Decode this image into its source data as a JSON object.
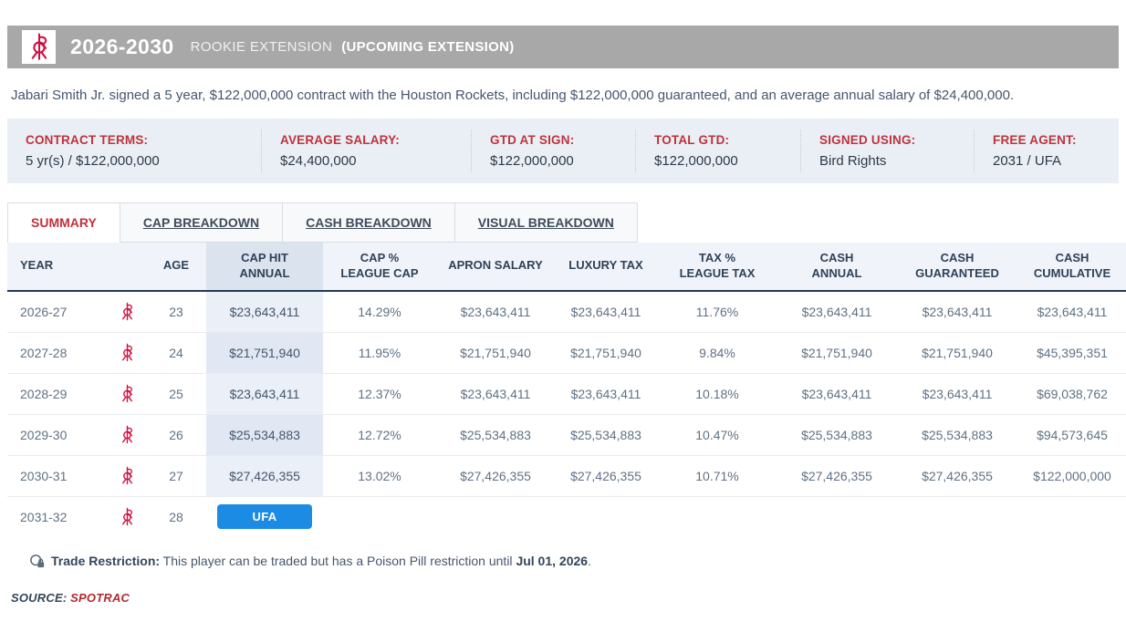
{
  "title_bar": {
    "years": "2026-2030",
    "contract_type": "ROOKIE EXTENSION",
    "status": "(UPCOMING EXTENSION)",
    "team_logo": "houston-rockets-logo",
    "bar_color": "#a8a8a8",
    "logo_color": "#ce1141"
  },
  "summary_sentence": "Jabari Smith Jr. signed a 5 year, $122,000,000 contract with the Houston Rockets, including $122,000,000 guaranteed, and an average annual salary of $24,400,000.",
  "contract_terms": [
    {
      "label": "CONTRACT TERMS:",
      "value": "5 yr(s) / $122,000,000"
    },
    {
      "label": "AVERAGE SALARY:",
      "value": "$24,400,000"
    },
    {
      "label": "GTD AT SIGN:",
      "value": "$122,000,000"
    },
    {
      "label": "TOTAL GTD:",
      "value": "$122,000,000"
    },
    {
      "label": "SIGNED USING:",
      "value": "Bird Rights"
    },
    {
      "label": "FREE AGENT:",
      "value": "2031 / UFA"
    }
  ],
  "tabs": [
    {
      "label": "SUMMARY",
      "active": true
    },
    {
      "label": "CAP BREAKDOWN",
      "active": false
    },
    {
      "label": "CASH BREAKDOWN",
      "active": false
    },
    {
      "label": "VISUAL BREAKDOWN",
      "active": false
    }
  ],
  "table": {
    "columns": [
      {
        "lines": [
          "YEAR"
        ]
      },
      {
        "lines": [
          ""
        ]
      },
      {
        "lines": [
          "AGE"
        ]
      },
      {
        "lines": [
          "CAP HIT",
          "ANNUAL"
        ]
      },
      {
        "lines": [
          "CAP %",
          "LEAGUE CAP"
        ]
      },
      {
        "lines": [
          "APRON SALARY"
        ]
      },
      {
        "lines": [
          "LUXURY TAX"
        ]
      },
      {
        "lines": [
          "TAX %",
          "LEAGUE TAX"
        ]
      },
      {
        "lines": [
          "CASH",
          "ANNUAL"
        ]
      },
      {
        "lines": [
          "CASH",
          "GUARANTEED"
        ]
      },
      {
        "lines": [
          "CASH",
          "CUMULATIVE"
        ]
      }
    ],
    "rows": [
      {
        "year": "2026-27",
        "age": "23",
        "cap_hit": "$23,643,411",
        "cap_pct": "14.29%",
        "apron": "$23,643,411",
        "luxury": "$23,643,411",
        "tax_pct": "11.76%",
        "cash_annual": "$23,643,411",
        "cash_gtd": "$23,643,411",
        "cash_cum": "$23,643,411"
      },
      {
        "year": "2027-28",
        "age": "24",
        "cap_hit": "$21,751,940",
        "cap_pct": "11.95%",
        "apron": "$21,751,940",
        "luxury": "$21,751,940",
        "tax_pct": "9.84%",
        "cash_annual": "$21,751,940",
        "cash_gtd": "$21,751,940",
        "cash_cum": "$45,395,351"
      },
      {
        "year": "2028-29",
        "age": "25",
        "cap_hit": "$23,643,411",
        "cap_pct": "12.37%",
        "apron": "$23,643,411",
        "luxury": "$23,643,411",
        "tax_pct": "10.18%",
        "cash_annual": "$23,643,411",
        "cash_gtd": "$23,643,411",
        "cash_cum": "$69,038,762"
      },
      {
        "year": "2029-30",
        "age": "26",
        "cap_hit": "$25,534,883",
        "cap_pct": "12.72%",
        "apron": "$25,534,883",
        "luxury": "$25,534,883",
        "tax_pct": "10.47%",
        "cash_annual": "$25,534,883",
        "cash_gtd": "$25,534,883",
        "cash_cum": "$94,573,645"
      },
      {
        "year": "2030-31",
        "age": "27",
        "cap_hit": "$27,426,355",
        "cap_pct": "13.02%",
        "apron": "$27,426,355",
        "luxury": "$27,426,355",
        "tax_pct": "10.71%",
        "cash_annual": "$27,426,355",
        "cash_gtd": "$27,426,355",
        "cash_cum": "$122,000,000"
      },
      {
        "year": "2031-32",
        "age": "28",
        "badge": "UFA"
      }
    ],
    "ufa_badge_color": "#1c8be4"
  },
  "trade_note": {
    "label": "Trade Restriction:",
    "text": " This player can be traded but has a Poison Pill restriction until ",
    "date": "Jul 01, 2026",
    "suffix": "."
  },
  "source": {
    "label": "SOURCE:",
    "link": "SPOTRAC",
    "link_color": "#b02a33"
  }
}
